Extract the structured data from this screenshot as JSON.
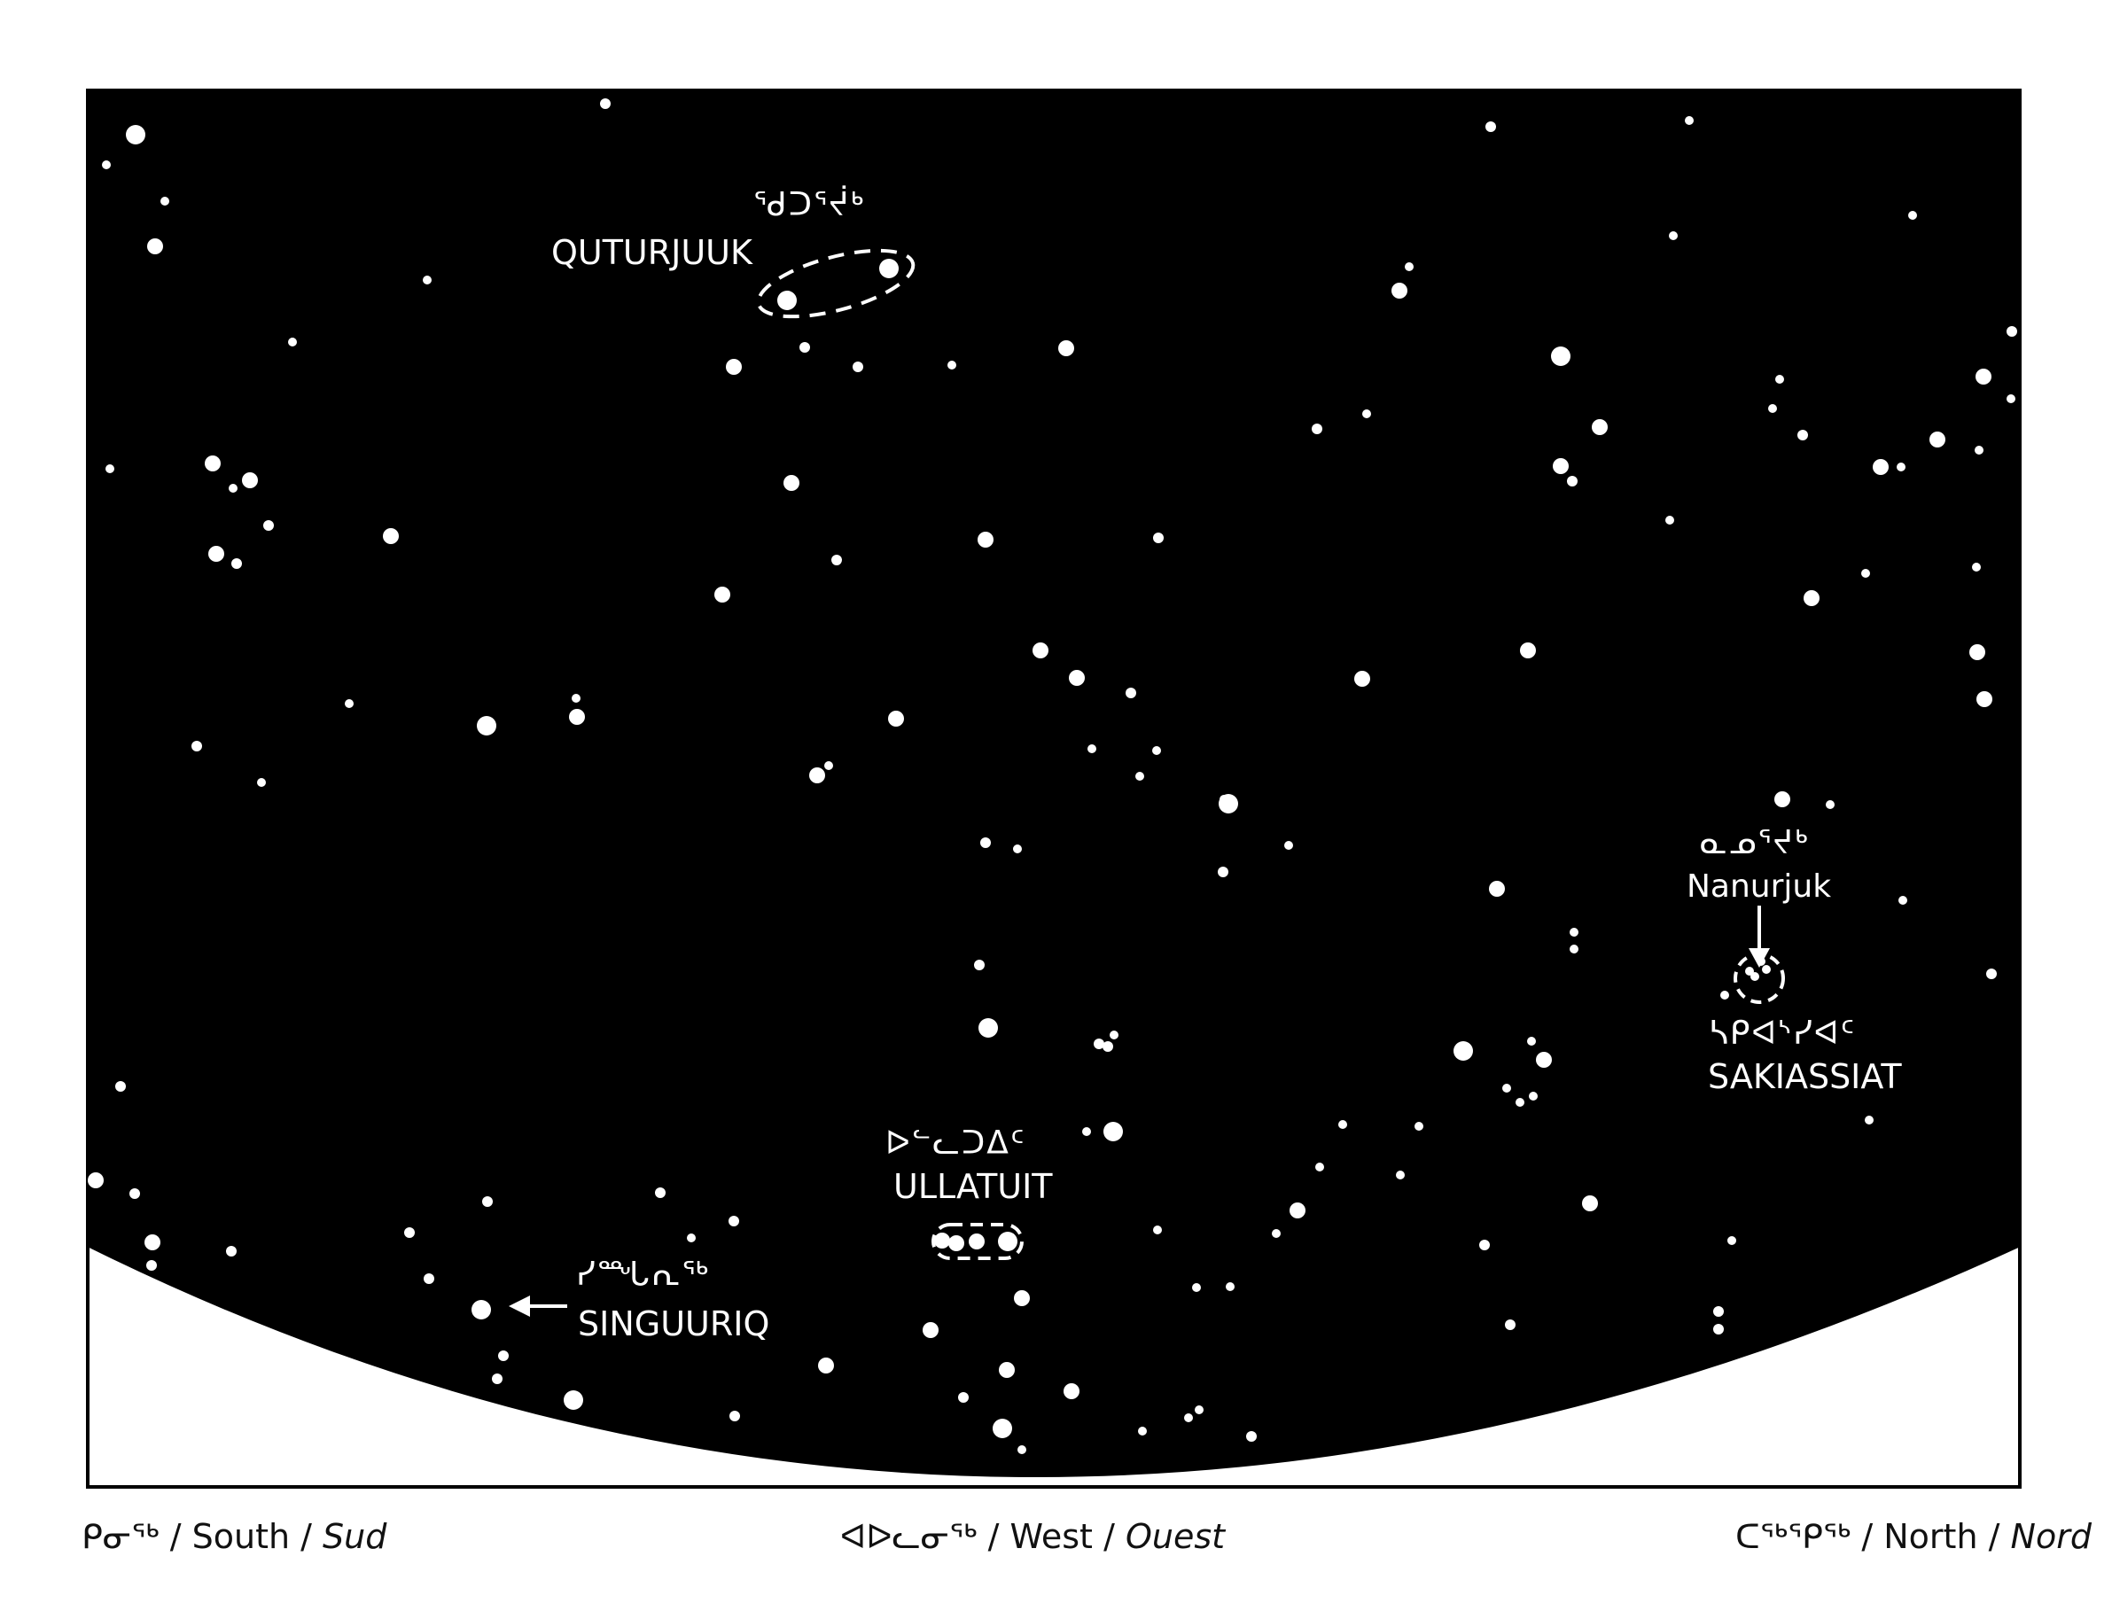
{
  "colors": {
    "sky": "#000000",
    "star": "#ffffff",
    "ground": "#ffffff",
    "text": "#111111"
  },
  "labels": {
    "quturjuuk": {
      "syllabics": "ᖁᑐᕐᔫᒃ",
      "name": "QUTURJUUK"
    },
    "nanurjuk": {
      "syllabics": "ᓇᓄᕐᔪᒃ",
      "name": "Nanurjuk"
    },
    "sakiassiat": {
      "syllabics": "ᓴᑭᐊᔅᓯᐊᑦ",
      "name": "SAKIASSIAT"
    },
    "ullatuit": {
      "syllabics": "ᐅᓪᓚᑐᐃᑦ",
      "name": "ULLATUIT"
    },
    "singuuriq": {
      "syllabics": "ᓯᙵᕆᖅ",
      "name": "SINGUURIQ"
    }
  },
  "directions": {
    "south": {
      "syllabics": "ᑭᓂᖅ",
      "english": "South",
      "french": "Sud"
    },
    "west": {
      "syllabics": "ᐊᐅᓚᓂᖅ",
      "english": "West",
      "french": "Ouest"
    },
    "north": {
      "syllabics": "ᑕᖅᕿᖅ",
      "english": "North",
      "french": "Nord"
    }
  },
  "separator": "/"
}
